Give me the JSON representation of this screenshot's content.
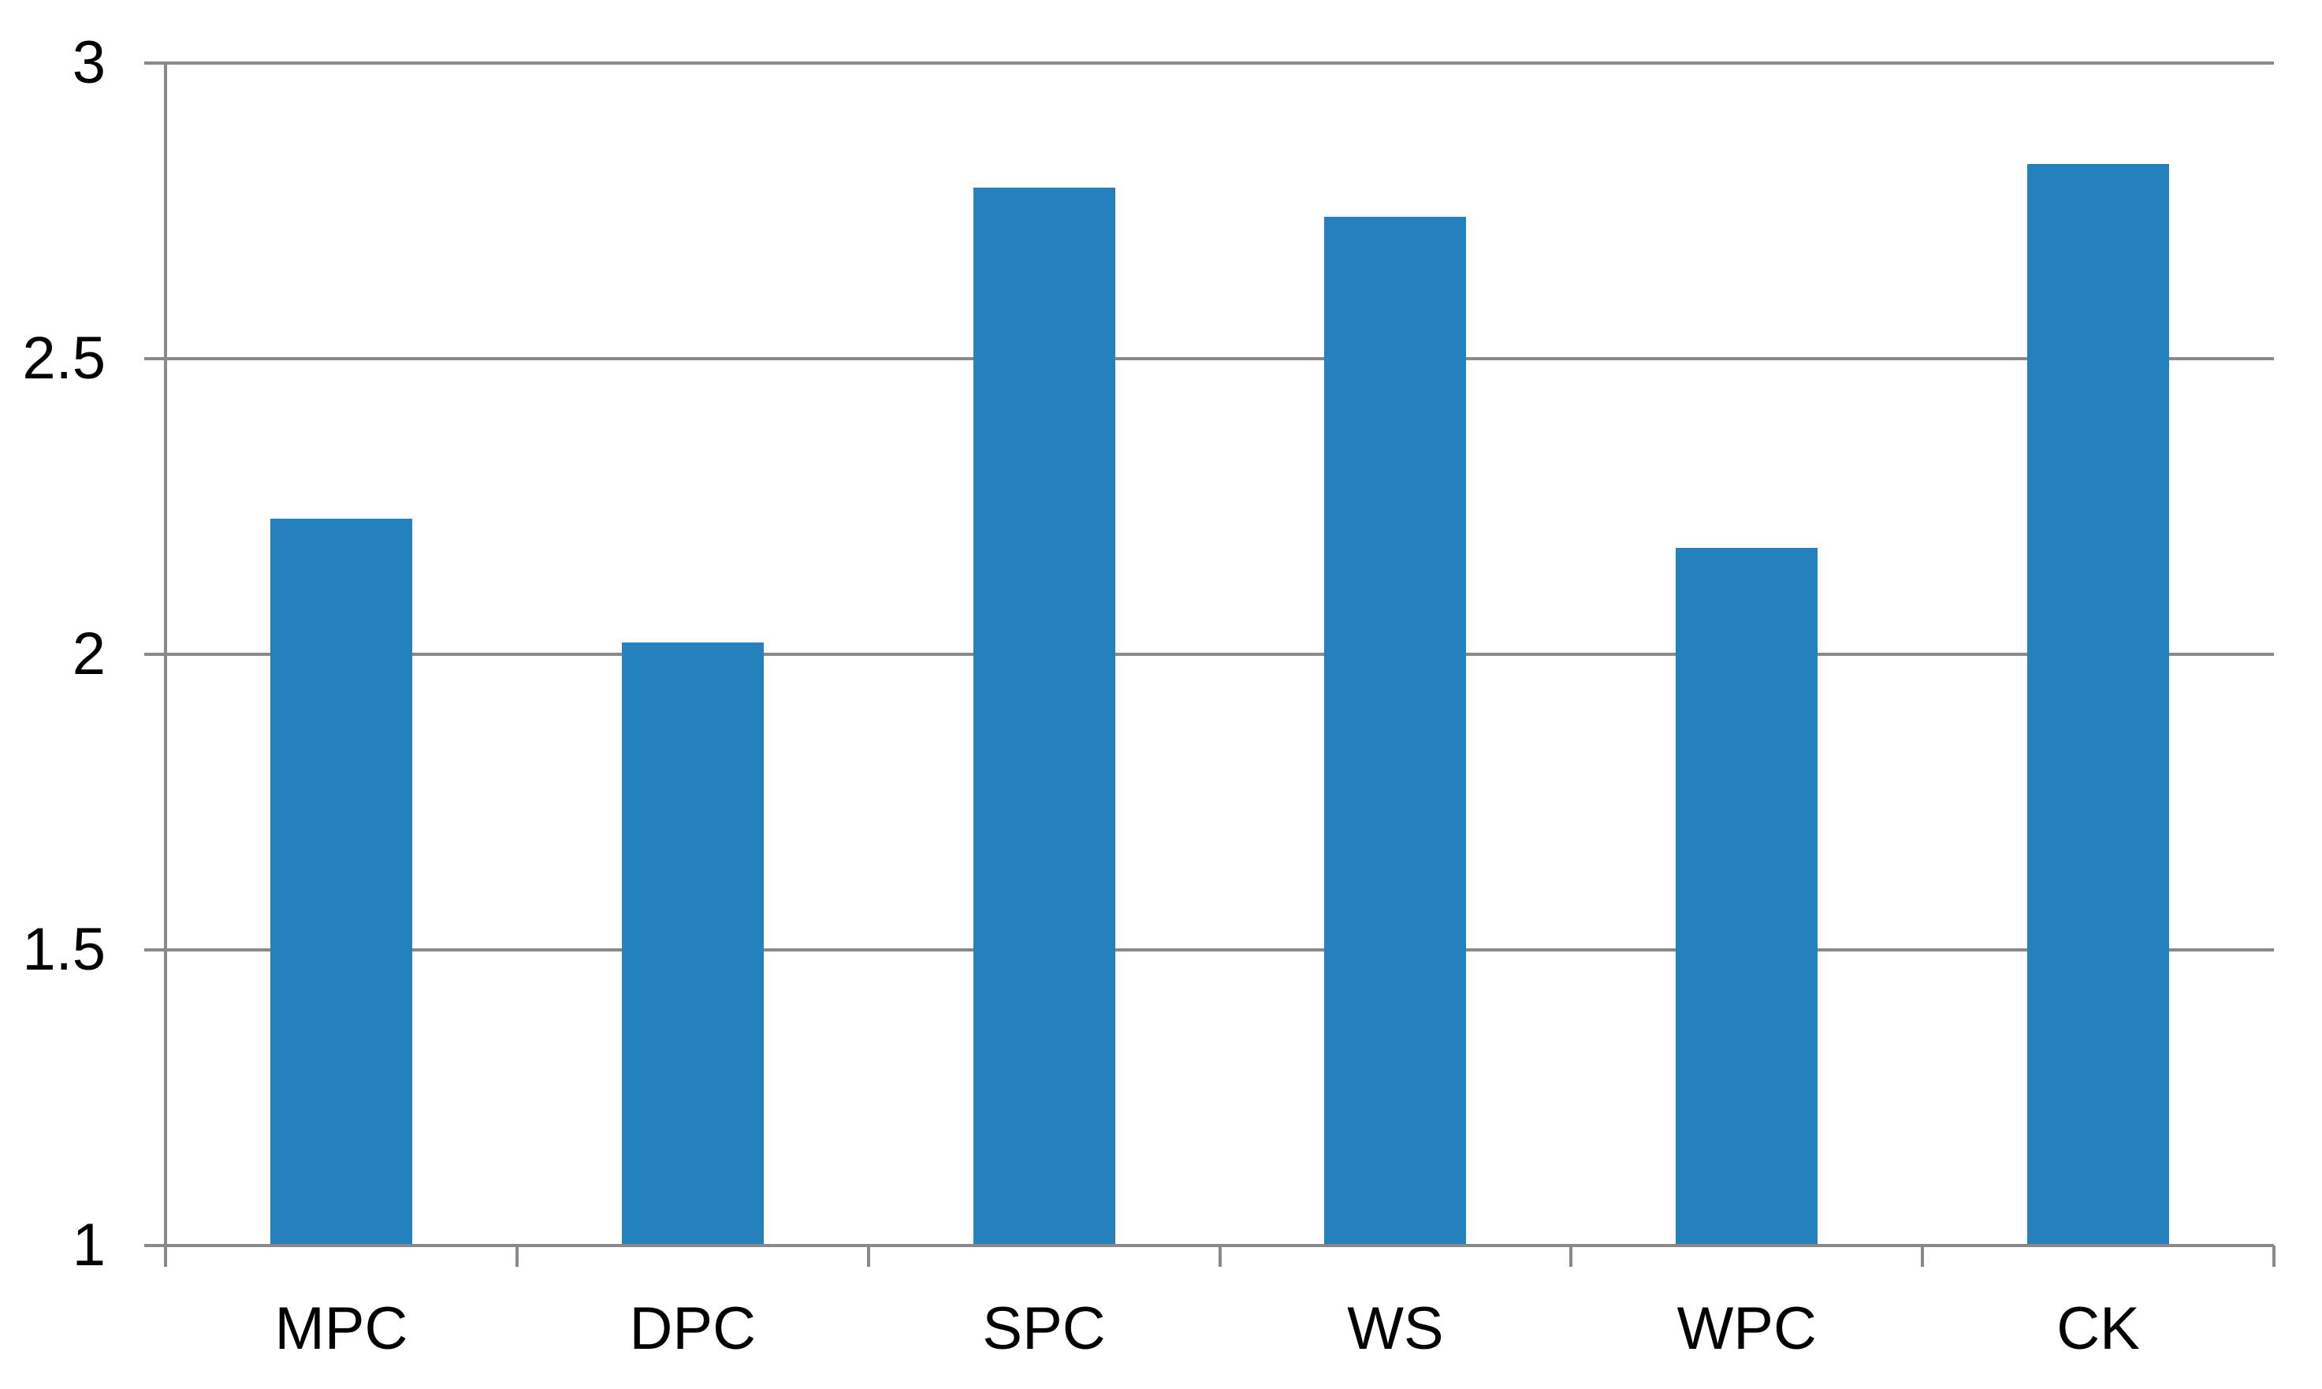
{
  "chart_data": {
    "type": "bar",
    "title": "",
    "xlabel": "",
    "ylabel": "",
    "categories": [
      "MPC",
      "DPC",
      "SPC",
      "WS",
      "WPC",
      "CK"
    ],
    "values": [
      2.23,
      2.02,
      2.79,
      2.74,
      2.18,
      2.83
    ],
    "ylim": [
      1,
      3
    ],
    "yticks": [
      1,
      1.5,
      2,
      2.5,
      3
    ],
    "ytick_labels": [
      "1",
      "1.5",
      "2",
      "2.5",
      "3"
    ],
    "grid": true,
    "legend": false,
    "colors": {
      "bar": "#2580BE",
      "gridline": "#898989",
      "axis": "#898989",
      "label_text": "#000000",
      "background": "#FFFFFF"
    }
  }
}
